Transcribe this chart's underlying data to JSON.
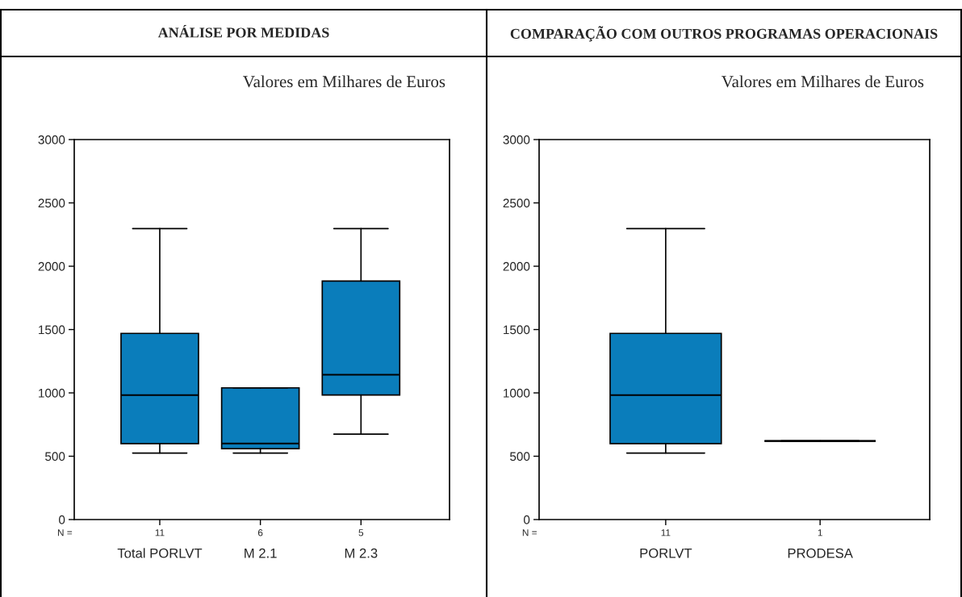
{
  "chart_data": [
    {
      "type": "box",
      "title": "ANÁLISE POR MEDIDAS",
      "subtitle": "Valores em Milhares de Euros",
      "categories": [
        "Total PORLVT",
        "M 2.1",
        "M 2.3"
      ],
      "color": "#0a7dbb",
      "boxes": [
        {
          "low": 525,
          "q1": 600,
          "median": 983,
          "q3": 1470,
          "high": 2297
        },
        {
          "low": 525,
          "q1": 560,
          "median": 600,
          "q3": 1040,
          "high": 1040
        },
        {
          "low": 674,
          "q1": 983,
          "median": 1143,
          "q3": 1883,
          "high": 2297
        }
      ],
      "ylim": [
        0,
        3000
      ],
      "yticks": [
        0,
        500,
        1000,
        1500,
        2000,
        2500,
        3000
      ],
      "grid": false,
      "legend": false,
      "annotations": [
        "N =",
        "11",
        "6",
        "5"
      ]
    },
    {
      "type": "box",
      "title": "COMPARAÇÃO COM OUTROS PROGRAMAS OPERACIONAIS",
      "subtitle": "Valores em Milhares de Euros",
      "categories": [
        "PORLVT",
        "PRODESA"
      ],
      "colors": [
        "#0a7dbb",
        "#000000"
      ],
      "boxes": [
        {
          "low": 525,
          "q1": 600,
          "median": 983,
          "q3": 1470,
          "high": 2297
        },
        {
          "low": 620,
          "q1": 620,
          "median": 620,
          "q3": 620,
          "high": 620
        }
      ],
      "ylim": [
        0,
        3000
      ],
      "yticks": [
        0,
        500,
        1000,
        1500,
        2000,
        2500,
        3000
      ],
      "grid": false,
      "legend": false,
      "annotations": [
        "N =",
        "11",
        "1"
      ]
    }
  ]
}
